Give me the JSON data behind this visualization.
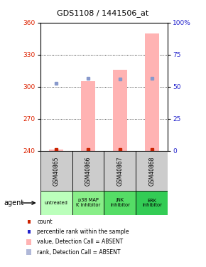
{
  "title": "GDS1108 / 1441506_at",
  "samples": [
    "GSM40865",
    "GSM40866",
    "GSM40867",
    "GSM40868"
  ],
  "agents": [
    "untreated",
    "p38 MAP\nK inhibitor",
    "JNK\ninhibitor",
    "ERK\ninhibitor"
  ],
  "ylim_left": [
    240,
    360
  ],
  "ylim_right": [
    0,
    100
  ],
  "yticks_left": [
    240,
    270,
    300,
    330,
    360
  ],
  "yticks_right": [
    0,
    25,
    50,
    75,
    100
  ],
  "bar_values": [
    241,
    305,
    316,
    350
  ],
  "bar_color": "#ffb3b3",
  "rank_marker_values": [
    303,
    308,
    307,
    308
  ],
  "rank_marker_color": "#8899cc",
  "count_marker_values": [
    241,
    241,
    241,
    241
  ],
  "count_marker_color": "#cc2200",
  "agent_colors": [
    "#bbffbb",
    "#88ee88",
    "#55dd66",
    "#33cc55"
  ],
  "sample_bg_color": "#cccccc",
  "left_tick_color": "#dd2200",
  "right_tick_color": "#2222cc",
  "legend_colors": [
    "#cc2200",
    "#2222cc",
    "#ffb3b3",
    "#b0b8d8"
  ],
  "legend_labels": [
    "count",
    "percentile rank within the sample",
    "value, Detection Call = ABSENT",
    "rank, Detection Call = ABSENT"
  ],
  "agent_label": "agent",
  "grid_ticks": [
    270,
    300,
    330
  ]
}
